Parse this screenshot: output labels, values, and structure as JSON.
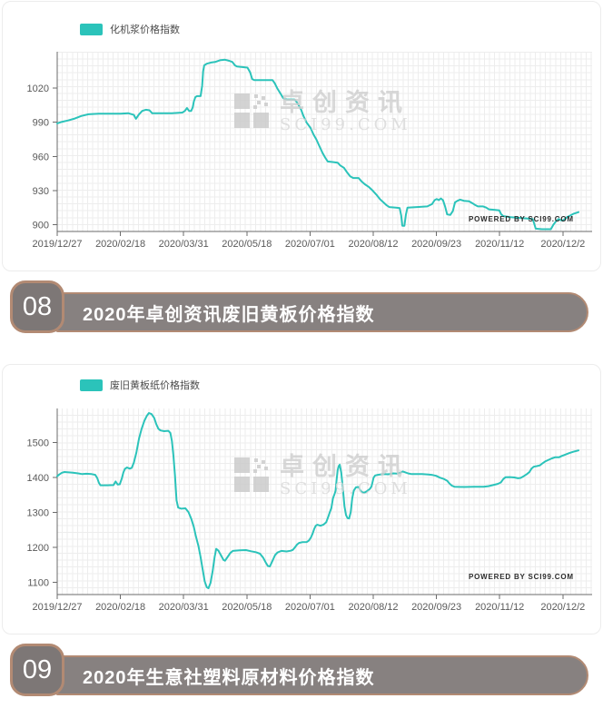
{
  "colors": {
    "line": "#2bc3ba",
    "grid": "#ededed",
    "axis": "#6b6b6b",
    "tick_label": "#595959",
    "header_bar": "#878180",
    "header_badge": "#7d7776",
    "header_border": "#b28a73",
    "header_text": "#ffffff",
    "watermark": "#cfcfcf"
  },
  "watermark": {
    "brand": "卓创资讯",
    "domain": "SCI99.COM"
  },
  "sections": [
    {
      "number": "08",
      "title": "2020年卓创资讯废旧黄板价格指数"
    },
    {
      "number": "09",
      "title": "2020年生意社塑料原材料价格指数"
    }
  ],
  "chart_data": [
    {
      "type": "line",
      "title": "化机浆价格指数",
      "legend": "化机浆价格指数",
      "powered_by": "POWERED BY SCI99.COM",
      "legend_position": "top-left",
      "grid": true,
      "xlabel": "",
      "ylabel": "",
      "x_tick_labels": [
        "2019/12/27",
        "2020/02/18",
        "2020/03/31",
        "2020/05/18",
        "2020/07/01",
        "2020/08/12",
        "2020/09/23",
        "2020/11/12",
        "2020/12/2"
      ],
      "y_ticks": [
        900,
        930,
        960,
        990,
        1020
      ],
      "ylim": [
        894,
        1052
      ],
      "x_unit": "fraction of x-axis from 2019/12/27 to end of 2020/12",
      "points": [
        [
          0,
          989
        ],
        [
          0.01,
          990.5
        ],
        [
          0.02,
          991.5
        ],
        [
          0.032,
          993
        ],
        [
          0.046,
          995.5
        ],
        [
          0.06,
          997
        ],
        [
          0.08,
          997.5
        ],
        [
          0.1,
          997.5
        ],
        [
          0.122,
          997.5
        ],
        [
          0.136,
          998
        ],
        [
          0.147,
          996.5
        ],
        [
          0.151,
          993
        ],
        [
          0.157,
          997
        ],
        [
          0.163,
          1000
        ],
        [
          0.17,
          1001
        ],
        [
          0.177,
          1000.5
        ],
        [
          0.182,
          998
        ],
        [
          0.2,
          998
        ],
        [
          0.22,
          998
        ],
        [
          0.24,
          998.5
        ],
        [
          0.245,
          1000
        ],
        [
          0.249,
          1002.5
        ],
        [
          0.253,
          1000
        ],
        [
          0.257,
          1000
        ],
        [
          0.26,
          1003
        ],
        [
          0.262,
          1008
        ],
        [
          0.265,
          1012
        ],
        [
          0.268,
          1013
        ],
        [
          0.275,
          1013
        ],
        [
          0.278,
          1022
        ],
        [
          0.28,
          1035
        ],
        [
          0.282,
          1040
        ],
        [
          0.287,
          1041.5
        ],
        [
          0.295,
          1042.5
        ],
        [
          0.303,
          1043
        ],
        [
          0.312,
          1044.5
        ],
        [
          0.322,
          1045
        ],
        [
          0.33,
          1044
        ],
        [
          0.336,
          1043
        ],
        [
          0.341,
          1040
        ],
        [
          0.345,
          1039
        ],
        [
          0.355,
          1038.5
        ],
        [
          0.365,
          1038
        ],
        [
          0.37,
          1034
        ],
        [
          0.374,
          1028
        ],
        [
          0.378,
          1027
        ],
        [
          0.4,
          1027
        ],
        [
          0.413,
          1027
        ],
        [
          0.417,
          1024.5
        ],
        [
          0.422,
          1020
        ],
        [
          0.426,
          1017
        ],
        [
          0.43,
          1014
        ],
        [
          0.434,
          1011
        ],
        [
          0.44,
          1010
        ],
        [
          0.455,
          1010
        ],
        [
          0.459,
          1008
        ],
        [
          0.463,
          1005
        ],
        [
          0.468,
          1001
        ],
        [
          0.472,
          996
        ],
        [
          0.478,
          990
        ],
        [
          0.486,
          985
        ],
        [
          0.492,
          979
        ],
        [
          0.497,
          975
        ],
        [
          0.503,
          969
        ],
        [
          0.509,
          963
        ],
        [
          0.514,
          959
        ],
        [
          0.519,
          955.5
        ],
        [
          0.53,
          955
        ],
        [
          0.538,
          954.5
        ],
        [
          0.543,
          952
        ],
        [
          0.55,
          950
        ],
        [
          0.556,
          946
        ],
        [
          0.562,
          942.5
        ],
        [
          0.568,
          941
        ],
        [
          0.578,
          941
        ],
        [
          0.584,
          938
        ],
        [
          0.59,
          935.5
        ],
        [
          0.598,
          933
        ],
        [
          0.605,
          930
        ],
        [
          0.612,
          926.5
        ],
        [
          0.619,
          922.5
        ],
        [
          0.626,
          919.5
        ],
        [
          0.632,
          917
        ],
        [
          0.637,
          915.5
        ],
        [
          0.65,
          915
        ],
        [
          0.657,
          914.5
        ],
        [
          0.66,
          908
        ],
        [
          0.662,
          899
        ],
        [
          0.666,
          899
        ],
        [
          0.669,
          909
        ],
        [
          0.672,
          915
        ],
        [
          0.69,
          915.5
        ],
        [
          0.71,
          916
        ],
        [
          0.719,
          918
        ],
        [
          0.724,
          921.5
        ],
        [
          0.728,
          922.5
        ],
        [
          0.732,
          921.5
        ],
        [
          0.736,
          923
        ],
        [
          0.74,
          921.5
        ],
        [
          0.744,
          916
        ],
        [
          0.748,
          909
        ],
        [
          0.754,
          908.5
        ],
        [
          0.759,
          912
        ],
        [
          0.763,
          919.5
        ],
        [
          0.768,
          921
        ],
        [
          0.773,
          922
        ],
        [
          0.78,
          921
        ],
        [
          0.79,
          920.5
        ],
        [
          0.796,
          919
        ],
        [
          0.801,
          917.5
        ],
        [
          0.807,
          916
        ],
        [
          0.817,
          916
        ],
        [
          0.823,
          915
        ],
        [
          0.828,
          913.5
        ],
        [
          0.84,
          913
        ],
        [
          0.848,
          912.5
        ],
        [
          0.852,
          909
        ],
        [
          0.856,
          907.5
        ],
        [
          0.87,
          906.5
        ],
        [
          0.885,
          906
        ],
        [
          0.9,
          905.5
        ],
        [
          0.912,
          905
        ],
        [
          0.915,
          901
        ],
        [
          0.918,
          896.5
        ],
        [
          0.93,
          896
        ],
        [
          0.947,
          896
        ],
        [
          0.952,
          900
        ],
        [
          0.957,
          903
        ],
        [
          0.962,
          905
        ],
        [
          0.966,
          904
        ],
        [
          0.97,
          903.5
        ],
        [
          0.974,
          905
        ],
        [
          0.978,
          906.5
        ],
        [
          0.984,
          908
        ],
        [
          0.99,
          909.5
        ],
        [
          1,
          911
        ]
      ]
    },
    {
      "type": "line",
      "title": "废旧黄板纸价格指数",
      "legend": "废旧黄板纸价格指数",
      "powered_by": "POWERED BY SCI99.COM",
      "legend_position": "top-left",
      "grid": true,
      "xlabel": "",
      "ylabel": "",
      "x_tick_labels": [
        "2019/12/27",
        "2020/02/18",
        "2020/03/31",
        "2020/05/18",
        "2020/07/01",
        "2020/08/12",
        "2020/09/23",
        "2020/11/12",
        "2020/12/2"
      ],
      "y_ticks": [
        1100,
        1200,
        1300,
        1400,
        1500
      ],
      "ylim": [
        1065,
        1598
      ],
      "x_unit": "fraction of x-axis from 2019/12/27 to end of 2020/12",
      "points": [
        [
          0,
          1404
        ],
        [
          0.004,
          1409
        ],
        [
          0.009,
          1414
        ],
        [
          0.014,
          1416
        ],
        [
          0.022,
          1415
        ],
        [
          0.03,
          1414
        ],
        [
          0.04,
          1412
        ],
        [
          0.048,
          1410
        ],
        [
          0.056,
          1411
        ],
        [
          0.066,
          1410
        ],
        [
          0.073,
          1408
        ],
        [
          0.077,
          1398
        ],
        [
          0.08,
          1385
        ],
        [
          0.083,
          1378
        ],
        [
          0.095,
          1378
        ],
        [
          0.108,
          1378.5
        ],
        [
          0.112,
          1389
        ],
        [
          0.116,
          1380
        ],
        [
          0.12,
          1381
        ],
        [
          0.124,
          1398
        ],
        [
          0.127,
          1415
        ],
        [
          0.13,
          1425
        ],
        [
          0.134,
          1429
        ],
        [
          0.139,
          1425.5
        ],
        [
          0.143,
          1428
        ],
        [
          0.147,
          1443
        ],
        [
          0.152,
          1472
        ],
        [
          0.157,
          1512
        ],
        [
          0.162,
          1540
        ],
        [
          0.167,
          1562
        ],
        [
          0.172,
          1577
        ],
        [
          0.176,
          1585
        ],
        [
          0.181,
          1582
        ],
        [
          0.186,
          1571
        ],
        [
          0.19,
          1553
        ],
        [
          0.194,
          1540
        ],
        [
          0.198,
          1535
        ],
        [
          0.205,
          1533
        ],
        [
          0.213,
          1534
        ],
        [
          0.217,
          1528
        ],
        [
          0.22,
          1505
        ],
        [
          0.223,
          1462
        ],
        [
          0.226,
          1405
        ],
        [
          0.229,
          1335
        ],
        [
          0.232,
          1314
        ],
        [
          0.238,
          1311
        ],
        [
          0.246,
          1312
        ],
        [
          0.252,
          1301
        ],
        [
          0.257,
          1283
        ],
        [
          0.262,
          1259
        ],
        [
          0.266,
          1232
        ],
        [
          0.271,
          1203
        ],
        [
          0.275,
          1172
        ],
        [
          0.279,
          1138
        ],
        [
          0.283,
          1103
        ],
        [
          0.287,
          1086
        ],
        [
          0.29,
          1083
        ],
        [
          0.294,
          1098
        ],
        [
          0.298,
          1131
        ],
        [
          0.302,
          1172
        ],
        [
          0.305,
          1196
        ],
        [
          0.309,
          1191
        ],
        [
          0.314,
          1178
        ],
        [
          0.319,
          1164
        ],
        [
          0.322,
          1162
        ],
        [
          0.327,
          1173
        ],
        [
          0.332,
          1184
        ],
        [
          0.337,
          1190
        ],
        [
          0.35,
          1192
        ],
        [
          0.362,
          1192.5
        ],
        [
          0.372,
          1189
        ],
        [
          0.381,
          1186.5
        ],
        [
          0.389,
          1182
        ],
        [
          0.395,
          1171
        ],
        [
          0.4,
          1157
        ],
        [
          0.404,
          1147
        ],
        [
          0.408,
          1145.5
        ],
        [
          0.413,
          1162
        ],
        [
          0.418,
          1178
        ],
        [
          0.423,
          1186
        ],
        [
          0.43,
          1190
        ],
        [
          0.44,
          1188.5
        ],
        [
          0.448,
          1190.5
        ],
        [
          0.452,
          1193
        ],
        [
          0.456,
          1200
        ],
        [
          0.46,
          1208
        ],
        [
          0.464,
          1213
        ],
        [
          0.47,
          1215
        ],
        [
          0.479,
          1215.5
        ],
        [
          0.483,
          1220
        ],
        [
          0.487,
          1229
        ],
        [
          0.49,
          1240
        ],
        [
          0.493,
          1253
        ],
        [
          0.496,
          1262
        ],
        [
          0.499,
          1265
        ],
        [
          0.505,
          1262
        ],
        [
          0.511,
          1265.5
        ],
        [
          0.516,
          1272
        ],
        [
          0.52,
          1288
        ],
        [
          0.523,
          1301
        ],
        [
          0.526,
          1313
        ],
        [
          0.529,
          1340
        ],
        [
          0.532,
          1353
        ],
        [
          0.534,
          1362
        ],
        [
          0.536,
          1395
        ],
        [
          0.538,
          1421
        ],
        [
          0.54,
          1433
        ],
        [
          0.542,
          1437
        ],
        [
          0.545,
          1414
        ],
        [
          0.548,
          1368
        ],
        [
          0.551,
          1318
        ],
        [
          0.554,
          1293
        ],
        [
          0.557,
          1284
        ],
        [
          0.56,
          1283
        ],
        [
          0.563,
          1301
        ],
        [
          0.566,
          1341
        ],
        [
          0.569,
          1363
        ],
        [
          0.573,
          1372
        ],
        [
          0.578,
          1373
        ],
        [
          0.582,
          1362
        ],
        [
          0.586,
          1357
        ],
        [
          0.59,
          1357.5
        ],
        [
          0.595,
          1362
        ],
        [
          0.6,
          1368
        ],
        [
          0.603,
          1375
        ],
        [
          0.605,
          1388
        ],
        [
          0.607,
          1400
        ],
        [
          0.61,
          1406
        ],
        [
          0.615,
          1408
        ],
        [
          0.625,
          1410
        ],
        [
          0.635,
          1409.5
        ],
        [
          0.645,
          1412
        ],
        [
          0.652,
          1411.5
        ],
        [
          0.658,
          1414
        ],
        [
          0.663,
          1417.5
        ],
        [
          0.668,
          1415
        ],
        [
          0.673,
          1412
        ],
        [
          0.68,
          1410
        ],
        [
          0.7,
          1410
        ],
        [
          0.712,
          1409
        ],
        [
          0.72,
          1407.5
        ],
        [
          0.727,
          1405
        ],
        [
          0.734,
          1400
        ],
        [
          0.742,
          1396
        ],
        [
          0.748,
          1391
        ],
        [
          0.752,
          1384
        ],
        [
          0.757,
          1377
        ],
        [
          0.762,
          1374
        ],
        [
          0.78,
          1373
        ],
        [
          0.8,
          1373.5
        ],
        [
          0.818,
          1374
        ],
        [
          0.827,
          1375.5
        ],
        [
          0.836,
          1378.5
        ],
        [
          0.845,
          1382
        ],
        [
          0.851,
          1386
        ],
        [
          0.856,
          1396
        ],
        [
          0.86,
          1401
        ],
        [
          0.868,
          1401.5
        ],
        [
          0.877,
          1400.5
        ],
        [
          0.884,
          1398
        ],
        [
          0.889,
          1399
        ],
        [
          0.895,
          1404
        ],
        [
          0.901,
          1410
        ],
        [
          0.906,
          1416
        ],
        [
          0.91,
          1426
        ],
        [
          0.914,
          1431
        ],
        [
          0.92,
          1433
        ],
        [
          0.926,
          1435
        ],
        [
          0.931,
          1441
        ],
        [
          0.937,
          1447
        ],
        [
          0.943,
          1451
        ],
        [
          0.949,
          1455
        ],
        [
          0.955,
          1458
        ],
        [
          0.963,
          1458.5
        ],
        [
          0.968,
          1462
        ],
        [
          0.975,
          1466
        ],
        [
          0.982,
          1470
        ],
        [
          0.99,
          1474
        ],
        [
          1,
          1478
        ]
      ]
    }
  ]
}
